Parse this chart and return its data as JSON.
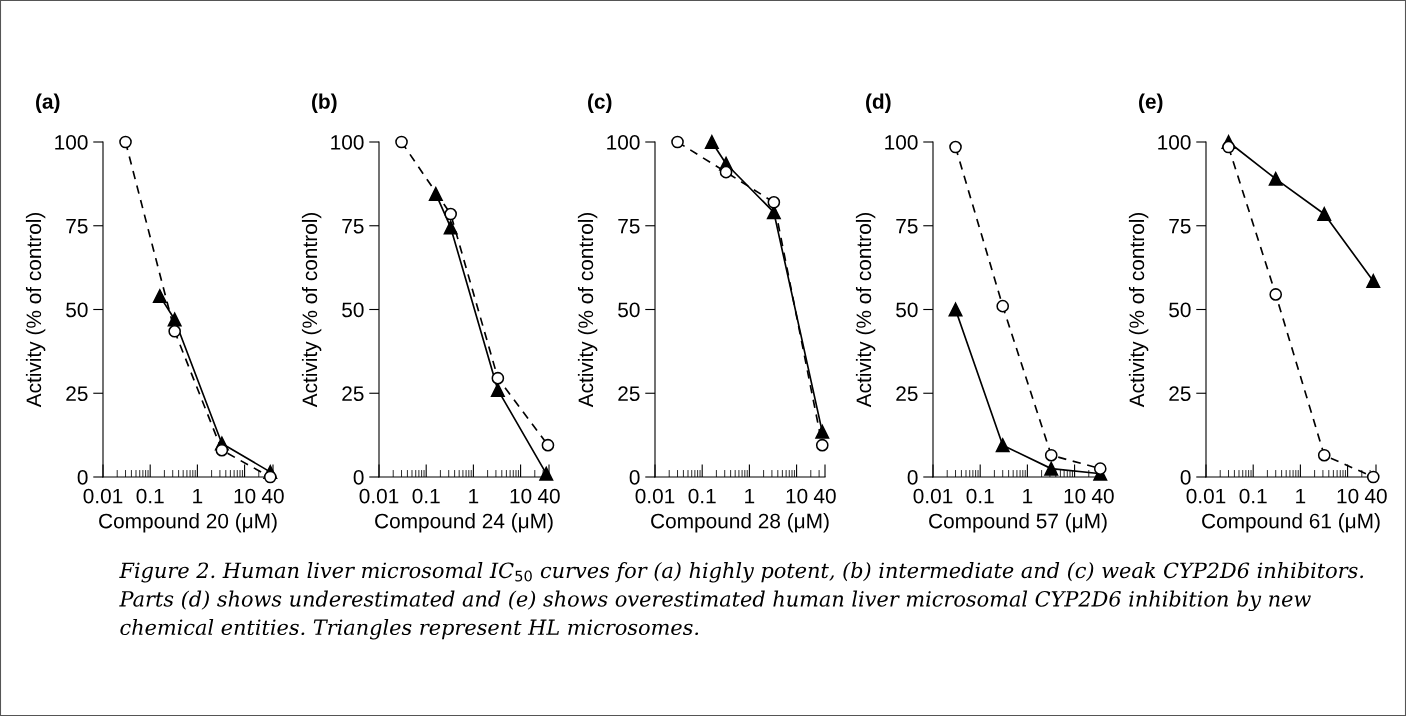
{
  "chart_data": [
    {
      "type": "line",
      "title": "(a)",
      "xlabel": "Compound 20 (μM)",
      "ylabel": "Activity (% of control)",
      "log": "x",
      "xlim": [
        0.01,
        40
      ],
      "xticks": [
        0.01,
        0.1,
        1,
        10,
        40
      ],
      "ylim": [
        0,
        100
      ],
      "yticks": [
        0,
        25,
        50,
        75,
        100
      ],
      "grid": false,
      "legend": false,
      "series": [
        {
          "color": "#000000",
          "marker": "circle",
          "line_style": "dashed",
          "x": [
            0.03,
            0.33,
            3.3,
            35
          ],
          "values": [
            100,
            43.5,
            8,
            0
          ]
        },
        {
          "color": "#000000",
          "marker": "triangle",
          "line_style": "solid",
          "x": [
            0.16,
            0.33,
            3.3,
            35
          ],
          "values": [
            54,
            47,
            10,
            1.5
          ]
        }
      ],
      "annotations": [
        "Figure 2. Human liver microsomal IC$_{50}$ curves for (a) highly potent, (b) intermediate and (c) weak CYP2D6 inhibitors. Parts (d) shows underestimated and (e) shows overestimated human liver microsomal CYP2D6 inhibition by new chemical entities. Triangles represent HL microsomes."
      ]
    },
    {
      "type": "line",
      "title": "(b)",
      "xlabel": "Compound 24 (μM)",
      "ylabel": "Activity (% of control)",
      "log": "x",
      "xlim": [
        0.01,
        40
      ],
      "xticks": [
        0.01,
        0.1,
        1,
        10,
        40
      ],
      "ylim": [
        0,
        100
      ],
      "yticks": [
        0,
        25,
        50,
        75,
        100
      ],
      "grid": false,
      "legend": false,
      "series": [
        {
          "color": "#000000",
          "marker": "circle",
          "line_style": "dashed",
          "x": [
            0.03,
            0.33,
            3.3,
            38
          ],
          "values": [
            100,
            78.5,
            29.5,
            9.5
          ]
        },
        {
          "color": "#000000",
          "marker": "triangle",
          "line_style": "solid",
          "x": [
            0.16,
            0.33,
            3.3,
            35
          ],
          "values": [
            84.5,
            74.5,
            26,
            1
          ]
        }
      ]
    },
    {
      "type": "line",
      "title": "(c)",
      "xlabel": "Compound 28 (μM)",
      "ylabel": "Activity (% of control)",
      "log": "x",
      "xlim": [
        0.01,
        40
      ],
      "xticks": [
        0.01,
        0.1,
        1,
        10,
        40
      ],
      "ylim": [
        0,
        100
      ],
      "yticks": [
        0,
        25,
        50,
        75,
        100
      ],
      "grid": false,
      "legend": false,
      "series": [
        {
          "color": "#000000",
          "marker": "circle",
          "line_style": "dashed",
          "x": [
            0.03,
            0.32,
            3.3,
            35
          ],
          "values": [
            100,
            91,
            82,
            9.5
          ]
        },
        {
          "color": "#000000",
          "marker": "triangle",
          "line_style": "solid",
          "x": [
            0.16,
            0.32,
            3.3,
            35
          ],
          "values": [
            100,
            93.5,
            79,
            13.5
          ]
        }
      ]
    },
    {
      "type": "line",
      "title": "(d)",
      "xlabel": "Compound 57 (μM)",
      "ylabel": "Activity (% of control)",
      "log": "x",
      "xlim": [
        0.01,
        40
      ],
      "xticks": [
        0.01,
        0.1,
        1,
        10,
        40
      ],
      "ylim": [
        0,
        100
      ],
      "yticks": [
        0,
        25,
        50,
        75,
        100
      ],
      "grid": false,
      "legend": false,
      "series": [
        {
          "color": "#000000",
          "marker": "circle",
          "line_style": "dashed",
          "x": [
            0.03,
            0.3,
            3.2,
            35
          ],
          "values": [
            98.5,
            51,
            6.5,
            2.5
          ]
        },
        {
          "color": "#000000",
          "marker": "triangle",
          "line_style": "solid",
          "x": [
            0.03,
            0.3,
            3.2,
            35
          ],
          "values": [
            50,
            9.5,
            2.5,
            1
          ]
        }
      ]
    },
    {
      "type": "line",
      "title": "(e)",
      "xlabel": "Compound 61 (μM)",
      "ylabel": "Activity (% of control)",
      "log": "x",
      "xlim": [
        0.01,
        40
      ],
      "xticks": [
        0.01,
        0.1,
        1,
        10,
        40
      ],
      "ylim": [
        0,
        100
      ],
      "yticks": [
        0,
        25,
        50,
        75,
        100
      ],
      "grid": false,
      "legend": false,
      "series": [
        {
          "color": "#000000",
          "marker": "circle",
          "line_style": "dashed",
          "x": [
            0.03,
            0.3,
            3.2,
            35
          ],
          "values": [
            98.5,
            54.5,
            6.5,
            0
          ]
        },
        {
          "color": "#000000",
          "marker": "triangle",
          "line_style": "solid",
          "x": [
            0.03,
            0.3,
            3.2,
            35
          ],
          "values": [
            100,
            89,
            78.5,
            58.5
          ]
        }
      ]
    }
  ]
}
